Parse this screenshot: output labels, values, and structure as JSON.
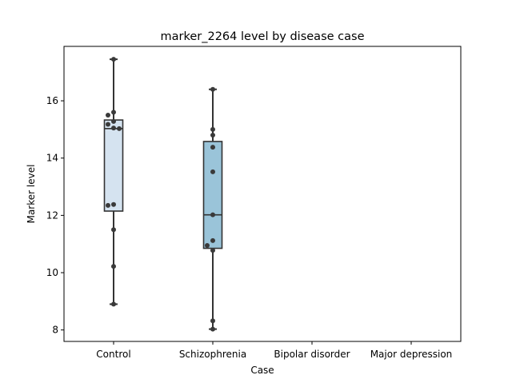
{
  "chart_data": {
    "type": "box",
    "title": "marker_2264 level by disease case",
    "xlabel": "Case",
    "ylabel": "Marker level",
    "categories": [
      "Control",
      "Schizophrenia",
      "Bipolar disorder",
      "Major depression"
    ],
    "ylim": [
      7.6,
      17.9
    ],
    "yticks": [
      8,
      10,
      12,
      14,
      16
    ],
    "ytick_labels": [
      "8",
      "10",
      "12",
      "14",
      "16"
    ],
    "grid": false,
    "legend": "none",
    "boxes": [
      {
        "category": "Control",
        "color": "#d5e3f0",
        "whisker_low": 8.9,
        "q1": 12.15,
        "median": 15.03,
        "q3": 15.33,
        "whisker_high": 17.45,
        "points": [
          17.45,
          15.6,
          15.5,
          15.28,
          15.18,
          15.05,
          15.03,
          12.38,
          12.35,
          11.5,
          10.22,
          8.9
        ]
      },
      {
        "category": "Schizophrenia",
        "color": "#9ac4d9",
        "whisker_low": 8.03,
        "q1": 10.85,
        "median": 12.02,
        "q3": 14.58,
        "whisker_high": 16.4,
        "points": [
          16.4,
          15.0,
          14.8,
          14.38,
          13.52,
          12.02,
          11.12,
          10.95,
          10.78,
          8.32,
          8.03
        ]
      },
      {
        "category": "Bipolar disorder",
        "points": []
      },
      {
        "category": "Major depression",
        "points": []
      }
    ],
    "point_color": "#3a3a3a",
    "line_color": "#333333"
  }
}
